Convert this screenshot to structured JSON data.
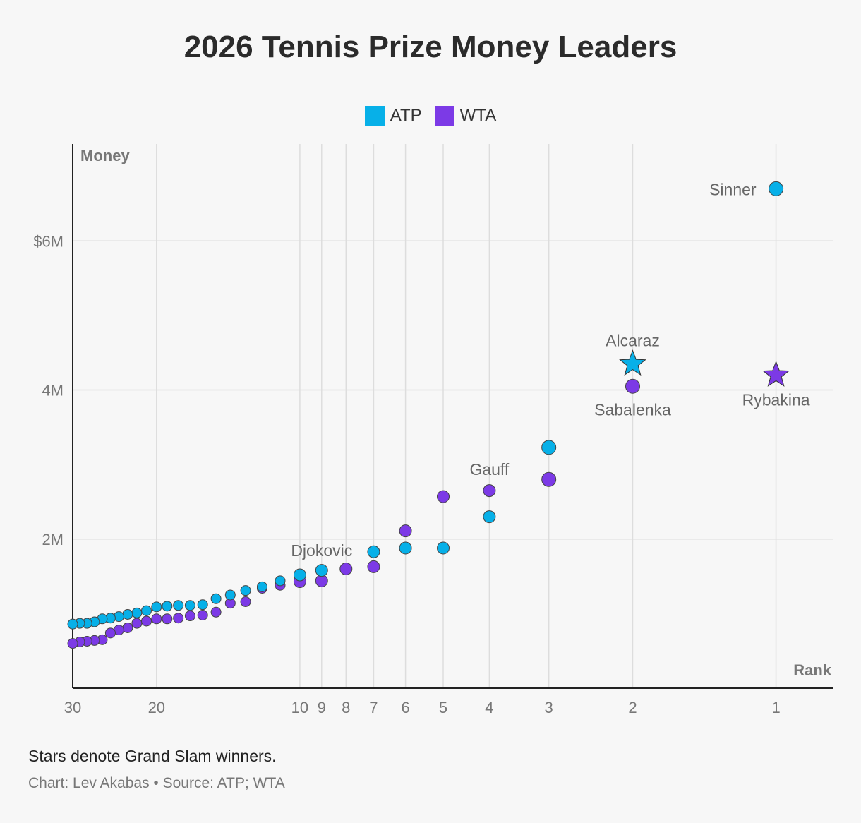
{
  "chart_data": {
    "type": "scatter",
    "title": "2026 Tennis Prize Money Leaders",
    "xlabel": "Rank",
    "ylabel": "Money",
    "x_scale": "log, reversed",
    "xlim": [
      30,
      0.76
    ],
    "ylim": [
      0,
      7300000
    ],
    "x_ticks": [
      30,
      20,
      10,
      9,
      8,
      7,
      6,
      5,
      4,
      3,
      2,
      1
    ],
    "x_tick_labels": [
      "30",
      "20",
      "10",
      "9",
      "8",
      "7",
      "6",
      "5",
      "4",
      "3",
      "2",
      "1"
    ],
    "y_ticks": [
      2000000,
      4000000,
      6000000
    ],
    "y_tick_labels": [
      "2M",
      "4M",
      "$6M"
    ],
    "grid": true,
    "legend_position": "top-center",
    "series": [
      {
        "name": "ATP",
        "color": "#07b0e8",
        "points": [
          {
            "rank": 1,
            "money": 6700000,
            "label": "Sinner"
          },
          {
            "rank": 2,
            "money": 4350000,
            "label": "Alcaraz",
            "grand_slam": true
          },
          {
            "rank": 3,
            "money": 3230000
          },
          {
            "rank": 4,
            "money": 2300000
          },
          {
            "rank": 5,
            "money": 1880000
          },
          {
            "rank": 6,
            "money": 1880000
          },
          {
            "rank": 7,
            "money": 1830000
          },
          {
            "rank": 9,
            "money": 1580000,
            "label": "Djokovic"
          },
          {
            "rank": 10,
            "money": 1520000
          },
          {
            "rank": 11,
            "money": 1440000
          },
          {
            "rank": 12,
            "money": 1360000
          },
          {
            "rank": 13,
            "money": 1310000
          },
          {
            "rank": 14,
            "money": 1250000
          },
          {
            "rank": 15,
            "money": 1200000
          },
          {
            "rank": 16,
            "money": 1120000
          },
          {
            "rank": 17,
            "money": 1110000
          },
          {
            "rank": 18,
            "money": 1110000
          },
          {
            "rank": 19,
            "money": 1100000
          },
          {
            "rank": 20,
            "money": 1090000
          },
          {
            "rank": 21,
            "money": 1040000
          },
          {
            "rank": 22,
            "money": 1010000
          },
          {
            "rank": 23,
            "money": 990000
          },
          {
            "rank": 24,
            "money": 960000
          },
          {
            "rank": 25,
            "money": 940000
          },
          {
            "rank": 26,
            "money": 930000
          },
          {
            "rank": 27,
            "money": 890000
          },
          {
            "rank": 28,
            "money": 870000
          },
          {
            "rank": 29,
            "money": 870000
          },
          {
            "rank": 30,
            "money": 860000
          }
        ]
      },
      {
        "name": "WTA",
        "color": "#7c3ae6",
        "points": [
          {
            "rank": 1,
            "money": 4200000,
            "label": "Rybakina",
            "grand_slam": true
          },
          {
            "rank": 2,
            "money": 4050000,
            "label": "Sabalenka"
          },
          {
            "rank": 3,
            "money": 2800000
          },
          {
            "rank": 4,
            "money": 2650000,
            "label": "Gauff"
          },
          {
            "rank": 5,
            "money": 2570000
          },
          {
            "rank": 6,
            "money": 2110000
          },
          {
            "rank": 7,
            "money": 1630000
          },
          {
            "rank": 8,
            "money": 1600000
          },
          {
            "rank": 9,
            "money": 1440000
          },
          {
            "rank": 10,
            "money": 1430000
          },
          {
            "rank": 11,
            "money": 1380000
          },
          {
            "rank": 12,
            "money": 1340000
          },
          {
            "rank": 13,
            "money": 1160000
          },
          {
            "rank": 14,
            "money": 1140000
          },
          {
            "rank": 15,
            "money": 1020000
          },
          {
            "rank": 16,
            "money": 980000
          },
          {
            "rank": 17,
            "money": 970000
          },
          {
            "rank": 18,
            "money": 940000
          },
          {
            "rank": 19,
            "money": 930000
          },
          {
            "rank": 20,
            "money": 930000
          },
          {
            "rank": 21,
            "money": 900000
          },
          {
            "rank": 22,
            "money": 870000
          },
          {
            "rank": 23,
            "money": 810000
          },
          {
            "rank": 24,
            "money": 780000
          },
          {
            "rank": 25,
            "money": 740000
          },
          {
            "rank": 26,
            "money": 650000
          },
          {
            "rank": 27,
            "money": 640000
          },
          {
            "rank": 28,
            "money": 630000
          },
          {
            "rank": 29,
            "money": 620000
          },
          {
            "rank": 30,
            "money": 600000
          }
        ]
      }
    ],
    "footnote": "Stars denote Grand Slam winners.",
    "credit": "Chart: Lev Akabas • Source: ATP; WTA"
  }
}
